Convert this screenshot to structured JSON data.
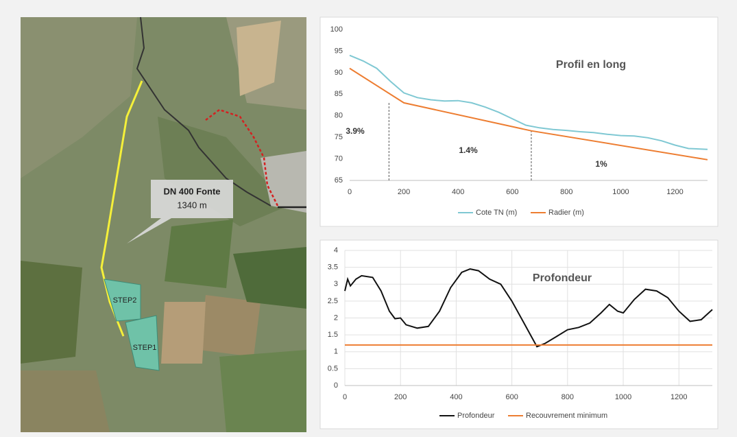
{
  "map": {
    "callout_title": "DN 400 Fonte",
    "callout_length": "1340 m",
    "step2": "STEP2",
    "step1": "STEP1"
  },
  "chart_data": [
    {
      "type": "line",
      "title": "Profil en long",
      "xlim": [
        0,
        1320
      ],
      "xticks": [
        0,
        200,
        400,
        600,
        800,
        1000,
        1200
      ],
      "ylim": [
        65,
        100
      ],
      "yticks": [
        65,
        70,
        75,
        80,
        85,
        90,
        95,
        100
      ],
      "grid": false,
      "annotations": [
        "3.9%",
        "1.4%",
        "1%"
      ],
      "dividers": [
        145,
        670
      ],
      "series": [
        {
          "name": "Cote TN (m)",
          "color": "#7fc8d3",
          "x": [
            0,
            50,
            100,
            150,
            200,
            250,
            300,
            350,
            400,
            450,
            500,
            550,
            600,
            650,
            700,
            750,
            800,
            850,
            900,
            950,
            1000,
            1050,
            1100,
            1150,
            1200,
            1250,
            1320
          ],
          "values": [
            94,
            92.7,
            91,
            88,
            85.3,
            84.2,
            83.7,
            83.4,
            83.5,
            83,
            82,
            80.8,
            79.3,
            77.8,
            77.2,
            76.8,
            76.6,
            76.3,
            76.1,
            75.7,
            75.4,
            75.3,
            74.9,
            74.2,
            73.2,
            72.4,
            72.2
          ]
        },
        {
          "name": "Radier (m)",
          "color": "#ed7d31",
          "x": [
            0,
            200,
            670,
            1320
          ],
          "values": [
            91,
            83,
            76.5,
            69.8
          ]
        }
      ]
    },
    {
      "type": "line",
      "title": "Profondeur",
      "xlim": [
        0,
        1320
      ],
      "xticks": [
        0,
        200,
        400,
        600,
        800,
        1000,
        1200
      ],
      "ylim": [
        0,
        4
      ],
      "yticks": [
        0,
        0.5,
        1,
        1.5,
        2,
        2.5,
        3,
        3.5,
        4
      ],
      "grid": true,
      "series": [
        {
          "name": "Profondeur",
          "color": "#111111",
          "x": [
            0,
            10,
            20,
            40,
            60,
            100,
            130,
            160,
            180,
            200,
            220,
            260,
            300,
            340,
            380,
            420,
            450,
            480,
            520,
            560,
            600,
            640,
            670,
            690,
            720,
            760,
            800,
            840,
            880,
            920,
            950,
            980,
            1000,
            1040,
            1080,
            1120,
            1160,
            1200,
            1240,
            1280,
            1320
          ],
          "values": [
            2.8,
            3.15,
            2.95,
            3.15,
            3.25,
            3.2,
            2.8,
            2.2,
            1.98,
            2.0,
            1.8,
            1.7,
            1.75,
            2.2,
            2.9,
            3.35,
            3.45,
            3.4,
            3.15,
            3.0,
            2.5,
            1.9,
            1.45,
            1.15,
            1.25,
            1.45,
            1.65,
            1.72,
            1.85,
            2.15,
            2.4,
            2.2,
            2.15,
            2.55,
            2.85,
            2.8,
            2.6,
            2.2,
            1.9,
            1.95,
            2.25
          ]
        },
        {
          "name": "Recouvrement minimum",
          "color": "#ed7d31",
          "x": [
            0,
            1320
          ],
          "values": [
            1.2,
            1.2
          ]
        }
      ]
    }
  ]
}
